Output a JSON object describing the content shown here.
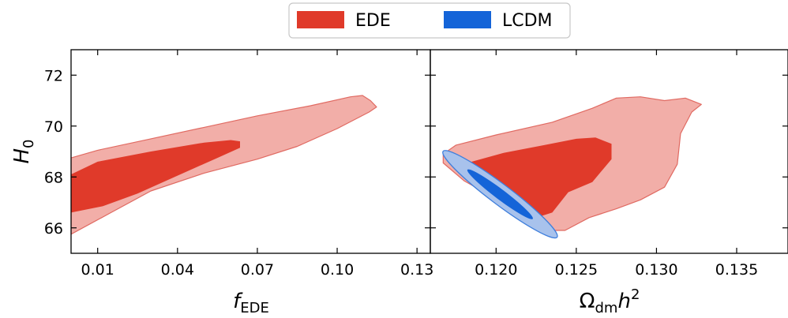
{
  "colors": {
    "ede_inner": "#e03a2a",
    "ede_outer": "#f2aea8",
    "ede_outer_edge": "#e06a62",
    "lcdm_inner": "#1464d8",
    "lcdm_outer": "#a8c2ec",
    "lcdm_outer_edge": "#3f7fdc"
  },
  "legend": {
    "placement": "top-center",
    "items": [
      {
        "key": "ede",
        "label": "EDE"
      },
      {
        "key": "lcdm",
        "label": "LCDM"
      }
    ]
  },
  "chart_data": [
    {
      "type": "contour",
      "xlabel": {
        "base": "f",
        "sub": "EDE"
      },
      "ylabel": {
        "base": "H",
        "sub": "0"
      },
      "xlim": [
        0.0,
        0.135
      ],
      "ylim": [
        65.0,
        73.0
      ],
      "xticks": [
        0.01,
        0.04,
        0.07,
        0.1,
        0.13
      ],
      "xtick_labels": [
        "0.01",
        "0.04",
        "0.07",
        "0.10",
        "0.13"
      ],
      "yticks": [
        66,
        68,
        70,
        72
      ],
      "ytick_labels": [
        "66",
        "68",
        "70",
        "72"
      ],
      "series": [
        {
          "key": "ede",
          "name": "EDE",
          "levels": [
            {
              "level": "outer",
              "points": [
                [
                  0.0,
                  68.75
                ],
                [
                  0.01,
                  69.05
                ],
                [
                  0.03,
                  69.5
                ],
                [
                  0.05,
                  69.95
                ],
                [
                  0.07,
                  70.4
                ],
                [
                  0.09,
                  70.8
                ],
                [
                  0.105,
                  71.15
                ],
                [
                  0.1095,
                  71.2
                ],
                [
                  0.1125,
                  71.0
                ],
                [
                  0.1148,
                  70.75
                ],
                [
                  0.112,
                  70.55
                ],
                [
                  0.1,
                  69.9
                ],
                [
                  0.085,
                  69.2
                ],
                [
                  0.07,
                  68.7
                ],
                [
                  0.05,
                  68.15
                ],
                [
                  0.03,
                  67.45
                ],
                [
                  0.015,
                  66.6
                ],
                [
                  0.0,
                  65.75
                ]
              ]
            },
            {
              "level": "inner",
              "points": [
                [
                  0.0,
                  68.1
                ],
                [
                  0.01,
                  68.6
                ],
                [
                  0.03,
                  69.0
                ],
                [
                  0.05,
                  69.35
                ],
                [
                  0.06,
                  69.45
                ],
                [
                  0.0635,
                  69.4
                ],
                [
                  0.0635,
                  69.15
                ],
                [
                  0.055,
                  68.75
                ],
                [
                  0.04,
                  68.05
                ],
                [
                  0.025,
                  67.35
                ],
                [
                  0.012,
                  66.85
                ],
                [
                  0.0,
                  66.6
                ]
              ]
            }
          ]
        }
      ]
    },
    {
      "type": "contour",
      "xlabel": {
        "base": "Ω",
        "sub": "dm",
        "tail": "h",
        "sup": "2"
      },
      "xlim": [
        0.1159,
        0.1382
      ],
      "ylim": [
        65.0,
        73.0
      ],
      "xticks": [
        0.12,
        0.125,
        0.13,
        0.135
      ],
      "xtick_labels": [
        "0.120",
        "0.125",
        "0.130",
        "0.135"
      ],
      "yticks": [
        66,
        68,
        70,
        72
      ],
      "ytick_labels": [],
      "series": [
        {
          "key": "ede",
          "name": "EDE",
          "levels": [
            {
              "level": "outer",
              "points": [
                [
                  0.1167,
                  68.9
                ],
                [
                  0.1175,
                  69.25
                ],
                [
                  0.12,
                  69.65
                ],
                [
                  0.1235,
                  70.15
                ],
                [
                  0.126,
                  70.7
                ],
                [
                  0.1275,
                  71.1
                ],
                [
                  0.129,
                  71.15
                ],
                [
                  0.1305,
                  71.0
                ],
                [
                  0.1318,
                  71.1
                ],
                [
                  0.1328,
                  70.85
                ],
                [
                  0.1322,
                  70.55
                ],
                [
                  0.1315,
                  69.7
                ],
                [
                  0.1313,
                  68.5
                ],
                [
                  0.1305,
                  67.6
                ],
                [
                  0.129,
                  67.1
                ],
                [
                  0.1275,
                  66.75
                ],
                [
                  0.1258,
                  66.4
                ],
                [
                  0.1243,
                  65.9
                ],
                [
                  0.1232,
                  65.9
                ],
                [
                  0.122,
                  66.35
                ],
                [
                  0.12,
                  67.15
                ],
                [
                  0.118,
                  67.85
                ],
                [
                  0.1167,
                  68.55
                ]
              ]
            },
            {
              "level": "inner",
              "points": [
                [
                  0.1182,
                  68.55
                ],
                [
                  0.1205,
                  68.95
                ],
                [
                  0.123,
                  69.25
                ],
                [
                  0.125,
                  69.5
                ],
                [
                  0.1262,
                  69.55
                ],
                [
                  0.1272,
                  69.3
                ],
                [
                  0.1272,
                  68.7
                ],
                [
                  0.126,
                  67.8
                ],
                [
                  0.1245,
                  67.4
                ],
                [
                  0.1235,
                  66.6
                ],
                [
                  0.1225,
                  66.4
                ],
                [
                  0.121,
                  66.95
                ],
                [
                  0.1195,
                  67.6
                ],
                [
                  0.1182,
                  68.3
                ]
              ]
            }
          ]
        },
        {
          "key": "lcdm",
          "name": "LCDM",
          "levels": [
            {
              "level": "outer",
              "ellipse": {
                "cx": 0.12025,
                "cy": 67.32,
                "rx": 0.00445,
                "ry": 0.4,
                "angle": 37
              }
            },
            {
              "level": "inner",
              "ellipse": {
                "cx": 0.12025,
                "cy": 67.32,
                "rx": 0.00255,
                "ry": 0.2,
                "angle": 37
              }
            }
          ]
        }
      ]
    }
  ]
}
